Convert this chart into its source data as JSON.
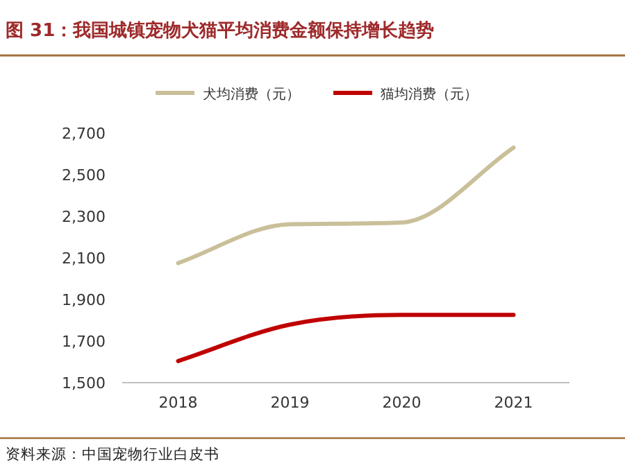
{
  "chart_data": {
    "type": "line",
    "title": "图 31：我国城镇宠物犬猫平均消费金额保持增长趋势",
    "categories": [
      "2018",
      "2019",
      "2020",
      "2021"
    ],
    "series": [
      {
        "name": "犬均消费（元）",
        "color": "#c9c09a",
        "values": [
          2075,
          2262,
          2270,
          2630
        ]
      },
      {
        "name": "猫均消费（元）",
        "color": "#c00000",
        "values": [
          1604,
          1779,
          1826,
          1826
        ]
      }
    ],
    "ylim": [
      1500,
      2700
    ],
    "yticks": [
      {
        "value": 1500,
        "label": "1,500"
      },
      {
        "value": 1700,
        "label": "1,700"
      },
      {
        "value": 1900,
        "label": "1,900"
      },
      {
        "value": 2100,
        "label": "2,100"
      },
      {
        "value": 2300,
        "label": "2,300"
      },
      {
        "value": 2500,
        "label": "2,500"
      },
      {
        "value": 2700,
        "label": "2,700"
      }
    ],
    "grid": false,
    "legend": "top",
    "marker": "none",
    "line_style": "solid",
    "annotations": [
      "资料来源：中国宠物行业白皮书"
    ]
  }
}
